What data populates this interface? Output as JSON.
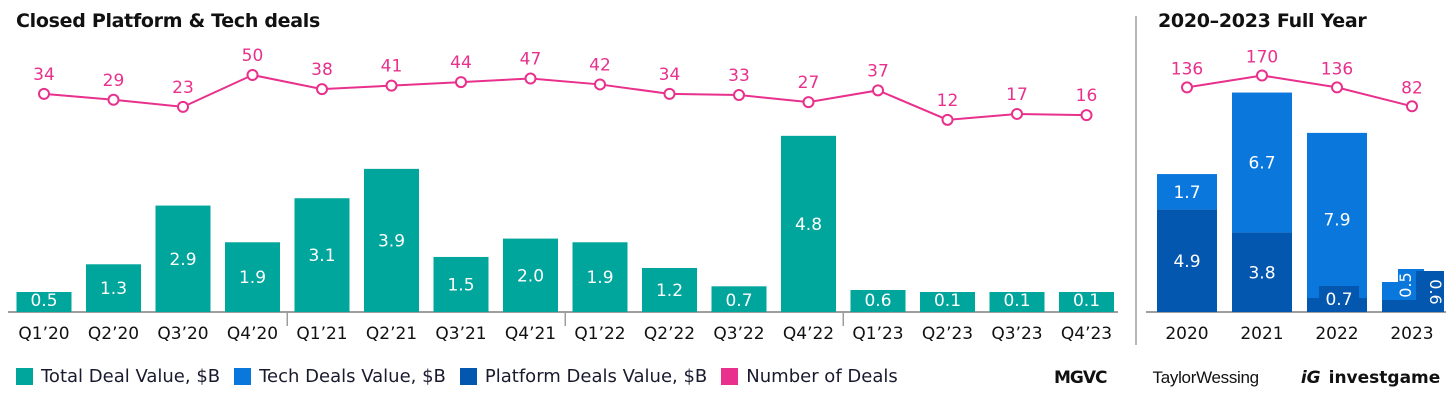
{
  "colors": {
    "total": "#00A59B",
    "tech": "#0A77DD",
    "platform": "#0457AE",
    "deals": "#E8308C",
    "axis": "#9E9E9E",
    "label_on_bar": "#FFFFFF",
    "tick_text": "#111111"
  },
  "chart_data": [
    {
      "type": "bar",
      "title": "Closed Platform & Tech deals",
      "categories": [
        "Q1’20",
        "Q2’20",
        "Q3’20",
        "Q4’20",
        "Q1’21",
        "Q2’21",
        "Q3’21",
        "Q4’21",
        "Q1’22",
        "Q2’22",
        "Q3’22",
        "Q4’22",
        "Q1’23",
        "Q2’23",
        "Q3’23",
        "Q4’23"
      ],
      "series": [
        {
          "name": "Total Deal Value, $B",
          "kind": "bar",
          "values": [
            0.5,
            1.3,
            2.9,
            1.9,
            3.1,
            3.9,
            1.5,
            2.0,
            1.9,
            1.2,
            0.7,
            4.8,
            0.6,
            0.1,
            0.1,
            0.1
          ]
        },
        {
          "name": "Number of Deals",
          "kind": "line",
          "values": [
            34,
            29,
            23,
            50,
            38,
            41,
            44,
            47,
            42,
            34,
            33,
            27,
            37,
            12,
            17,
            16
          ]
        }
      ],
      "year_separators_after": [
        "Q4’20",
        "Q4’21",
        "Q4’22"
      ],
      "xlabel": "",
      "ylabel": "",
      "grid": false
    },
    {
      "type": "bar",
      "stacked": true,
      "title": "2020–2023 Full Year",
      "categories": [
        "2020",
        "2021",
        "2022",
        "2023"
      ],
      "series": [
        {
          "name": "Platform Deals Value, $B",
          "kind": "bar",
          "values": [
            4.9,
            3.8,
            0.7,
            0.6
          ]
        },
        {
          "name": "Tech Deals Value, $B",
          "kind": "bar",
          "values": [
            1.7,
            6.7,
            7.9,
            0.5
          ]
        },
        {
          "name": "Number of Deals",
          "kind": "line",
          "values": [
            136,
            170,
            136,
            82
          ]
        }
      ],
      "xlabel": "",
      "ylabel": "",
      "grid": false
    }
  ],
  "legend": {
    "position": "bottom-left",
    "items": [
      {
        "label": "Total Deal Value, $B",
        "color_key": "total"
      },
      {
        "label": "Tech Deals Value, $B",
        "color_key": "tech"
      },
      {
        "label": "Platform Deals Value, $B",
        "color_key": "platform"
      },
      {
        "label": "Number of Deals",
        "color_key": "deals"
      }
    ]
  },
  "logos": {
    "mgvc": "MGVC",
    "taylor_wessing": "TaylorWessing",
    "investgame_mark": "iG",
    "investgame": "investgame"
  }
}
